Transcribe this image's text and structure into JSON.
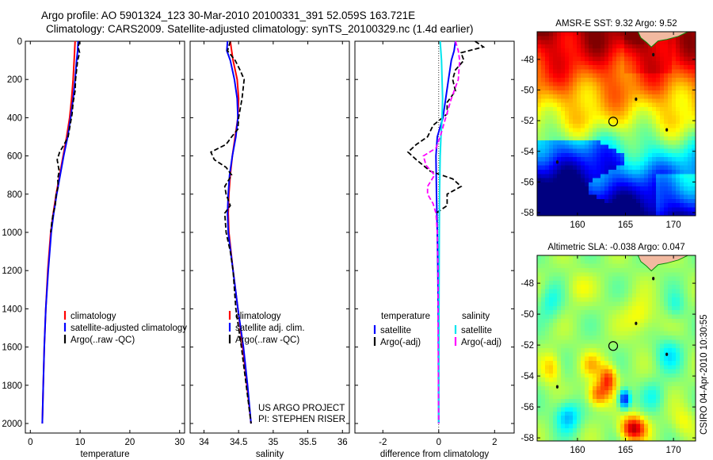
{
  "header": {
    "line1": "Argo profile: AO 5901324_123 30-Mar-2010 20100331_391 52.059S 163.721E",
    "line2": "Climatology: CARS2009. Satellite-adjusted climatology: synTS_20100329.nc (1.4d earlier)"
  },
  "credit": {
    "project": "US ARGO PROJECT",
    "pi": "PI: STEPHEN RISER",
    "timestamp": "CSIRO 04-Apr-2010 10:30:55"
  },
  "colors": {
    "climatology": "#ff0000",
    "satellite": "#0000ff",
    "argo": "#000000",
    "sal_satellite": "#00e5ee",
    "sal_argo": "#ff00ff"
  },
  "chart_data": [
    {
      "type": "line",
      "id": "temperature",
      "xlabel": "temperature",
      "xlim": [
        -1,
        31
      ],
      "ylim": [
        2050,
        0
      ],
      "xticks": [
        0,
        10,
        20,
        30
      ],
      "yticks": [
        0,
        200,
        400,
        600,
        800,
        1000,
        1200,
        1400,
        1600,
        1800,
        2000
      ],
      "legend": {
        "placement": "lower-right",
        "entries": [
          "climatology",
          "satellite-adjusted climatology",
          "Argo(..raw -QC)"
        ]
      },
      "series": [
        {
          "name": "climatology",
          "color": "#ff0000",
          "dash": "solid",
          "depth": [
            0,
            50,
            100,
            200,
            300,
            400,
            500,
            600,
            700,
            800,
            900,
            1000,
            1200,
            1400,
            1600,
            1800,
            2000
          ],
          "values": [
            9.0,
            8.9,
            8.8,
            8.6,
            8.3,
            7.9,
            7.3,
            6.6,
            5.9,
            5.2,
            4.6,
            4.1,
            3.5,
            3.1,
            2.8,
            2.6,
            2.4
          ]
        },
        {
          "name": "satellite-adjusted climatology",
          "color": "#0000ff",
          "dash": "solid",
          "depth": [
            0,
            50,
            100,
            200,
            300,
            400,
            500,
            600,
            700,
            800,
            900,
            1000,
            1200,
            1400,
            1600,
            1800,
            2000
          ],
          "values": [
            9.6,
            9.5,
            9.3,
            9.0,
            8.6,
            8.1,
            7.5,
            6.7,
            6.0,
            5.3,
            4.7,
            4.2,
            3.6,
            3.1,
            2.8,
            2.6,
            2.4
          ]
        },
        {
          "name": "Argo(..raw -QC)",
          "color": "#000000",
          "dash": "dashed",
          "depth": [
            0,
            30,
            60,
            100,
            150,
            200,
            260,
            320,
            380,
            440,
            500,
            540,
            580,
            620,
            680,
            720,
            760,
            800,
            860,
            900,
            950,
            1000
          ],
          "values": [
            9.9,
            9.6,
            9.9,
            9.5,
            9.3,
            9.1,
            9.0,
            8.6,
            8.4,
            8.0,
            7.6,
            6.8,
            5.9,
            5.4,
            5.8,
            5.5,
            5.6,
            5.2,
            5.0,
            4.6,
            4.3,
            4.1
          ]
        }
      ]
    },
    {
      "type": "line",
      "id": "salinity",
      "xlabel": "salinity",
      "xlim": [
        33.8,
        36.1
      ],
      "ylim": [
        2050,
        0
      ],
      "xticks": [
        34,
        34.5,
        35,
        35.5,
        36
      ],
      "legend": {
        "placement": "lower-right",
        "entries": [
          "climatology",
          "satellite adj. clim.",
          "Argo(..raw -QC)"
        ]
      },
      "series": [
        {
          "name": "climatology",
          "color": "#ff0000",
          "dash": "solid",
          "depth": [
            0,
            50,
            100,
            200,
            300,
            400,
            500,
            600,
            700,
            800,
            900,
            1000,
            1200,
            1400,
            1600,
            1800,
            2000
          ],
          "values": [
            34.38,
            34.4,
            34.42,
            34.48,
            34.5,
            34.49,
            34.45,
            34.41,
            34.38,
            34.36,
            34.35,
            34.36,
            34.42,
            34.49,
            34.56,
            34.62,
            34.68
          ]
        },
        {
          "name": "satellite adj. clim.",
          "color": "#0000ff",
          "dash": "solid",
          "depth": [
            0,
            50,
            100,
            200,
            300,
            400,
            500,
            600,
            700,
            800,
            900,
            1000,
            1200,
            1400,
            1600,
            1800,
            2000
          ],
          "values": [
            34.34,
            34.33,
            34.38,
            34.44,
            34.48,
            34.49,
            34.46,
            34.41,
            34.37,
            34.35,
            34.34,
            34.35,
            34.42,
            34.49,
            34.57,
            34.63,
            34.68
          ]
        },
        {
          "name": "Argo(..raw -QC)",
          "color": "#000000",
          "dash": "dashed",
          "depth": [
            0,
            50,
            100,
            150,
            200,
            300,
            400,
            460,
            500,
            540,
            580,
            620,
            660,
            700,
            760,
            800,
            860,
            900,
            1000,
            1100,
            1200,
            1400,
            1600,
            1800,
            2000
          ],
          "values": [
            34.38,
            34.34,
            34.45,
            34.52,
            34.58,
            34.55,
            34.5,
            34.49,
            34.4,
            34.32,
            34.1,
            34.15,
            34.32,
            34.4,
            34.3,
            34.32,
            34.38,
            34.3,
            34.32,
            34.38,
            34.42,
            34.46,
            34.54,
            34.61,
            34.68
          ]
        }
      ]
    },
    {
      "type": "line",
      "id": "difference",
      "xlabel": "difference from climatology",
      "xlim": [
        -3,
        2.7
      ],
      "ylim": [
        2050,
        0
      ],
      "xticks": [
        -2,
        0,
        2
      ],
      "legend": {
        "placement": "lower-center",
        "temperature_title": "temperature",
        "salinity_title": "salinity",
        "entries": [
          "satellite",
          "Argo(-adj)",
          "satellite",
          "Argo(-adj)"
        ]
      },
      "series": [
        {
          "name": "temperature satellite",
          "color": "#0000ff",
          "dash": "solid",
          "depth": [
            0,
            50,
            100,
            200,
            300,
            400,
            500,
            600,
            800,
            1000,
            1200,
            1500,
            2000
          ],
          "values": [
            0.6,
            0.55,
            0.45,
            0.35,
            0.25,
            0.15,
            -0.05,
            -0.1,
            -0.08,
            -0.05,
            -0.03,
            -0.01,
            0.0
          ]
        },
        {
          "name": "temperature Argo(-adj)",
          "color": "#000000",
          "dash": "dashed",
          "depth": [
            0,
            30,
            60,
            100,
            150,
            200,
            260,
            320,
            380,
            440,
            500,
            540,
            580,
            620,
            680,
            720,
            760,
            800,
            860,
            900
          ],
          "values": [
            1.3,
            1.6,
            0.8,
            0.9,
            0.6,
            0.5,
            0.6,
            0.3,
            0.3,
            -0.2,
            -0.4,
            -0.8,
            -1.1,
            -0.8,
            -0.3,
            0.5,
            0.8,
            0.3,
            0.3,
            -0.1
          ]
        },
        {
          "name": "salinity satellite",
          "color": "#00e5ee",
          "dash": "solid",
          "depth": [
            0,
            100,
            200,
            300,
            400,
            500,
            600,
            800,
            1000,
            1400,
            2000
          ],
          "values": [
            0.05,
            0.1,
            0.12,
            0.14,
            0.12,
            0.08,
            0.05,
            0.03,
            0.02,
            0.01,
            0.0
          ]
        },
        {
          "name": "salinity Argo(-adj)",
          "color": "#ff00ff",
          "dash": "dashed",
          "depth": [
            0,
            50,
            100,
            200,
            300,
            400,
            500,
            560,
            600,
            650,
            700,
            760,
            800,
            850,
            900,
            1000,
            1200,
            1500,
            1800,
            2000
          ],
          "values": [
            0.6,
            0.7,
            0.75,
            0.7,
            0.45,
            0.25,
            0.05,
            -0.1,
            -0.55,
            -0.45,
            -0.15,
            -0.4,
            -0.4,
            -0.2,
            -0.1,
            -0.05,
            -0.02,
            -0.02,
            -0.01,
            0.0
          ]
        }
      ]
    },
    {
      "type": "heatmap",
      "id": "sst-map",
      "title": "AMSR-E SST: 9.32 Argo: 9.52",
      "xlim": [
        155.8,
        172.3
      ],
      "ylim": [
        -58.2,
        -46.2
      ],
      "xticks": [
        160,
        165,
        170
      ],
      "yticks": [
        -48,
        -50,
        -52,
        -54,
        -56,
        -58
      ],
      "argo_position": {
        "lon": 163.721,
        "lat": -52.059
      }
    },
    {
      "type": "heatmap",
      "id": "sla-map",
      "title": "Altimetric SLA: -0.038 Argo: 0.047",
      "xlim": [
        155.8,
        172.3
      ],
      "ylim": [
        -58.2,
        -46.2
      ],
      "xticks": [
        160,
        165,
        170
      ],
      "yticks": [
        -48,
        -50,
        -52,
        -54,
        -56,
        -58
      ],
      "argo_position": {
        "lon": 163.721,
        "lat": -52.059
      }
    }
  ]
}
